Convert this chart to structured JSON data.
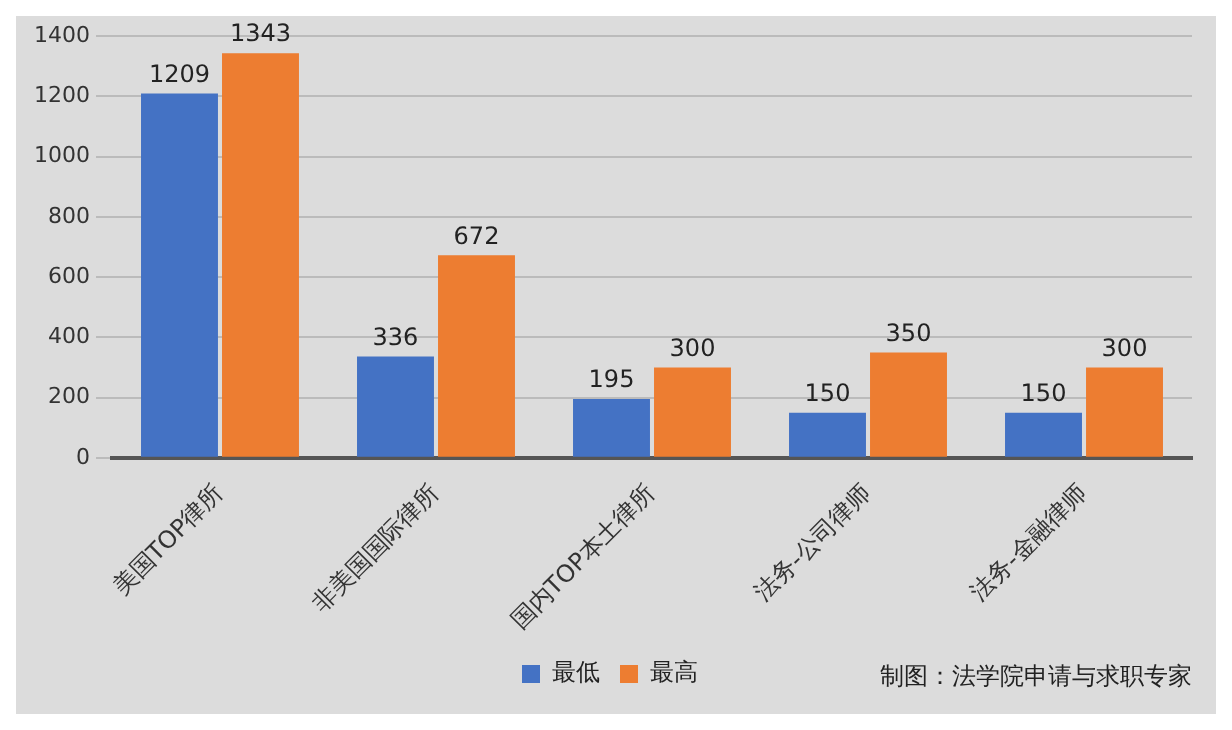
{
  "chart_data": {
    "type": "bar",
    "categories": [
      "美国TOP律所",
      "非美国国际律所",
      "国内TOP本土律所",
      "法务-公司律师",
      "法务-金融律师"
    ],
    "series": [
      {
        "name": "最低",
        "color": "#4472c4",
        "values": [
          1209,
          336,
          195,
          150,
          150
        ]
      },
      {
        "name": "最高",
        "color": "#ed7d31",
        "values": [
          1343,
          672,
          300,
          350,
          300
        ]
      }
    ],
    "ylim": [
      0,
      1400
    ],
    "yticks": [
      0,
      200,
      400,
      600,
      800,
      1000,
      1200,
      1400
    ],
    "grid": "y",
    "legend": "bottom",
    "data_labels": true,
    "annotations": [
      "制图：法学院申请与求职专家"
    ]
  }
}
